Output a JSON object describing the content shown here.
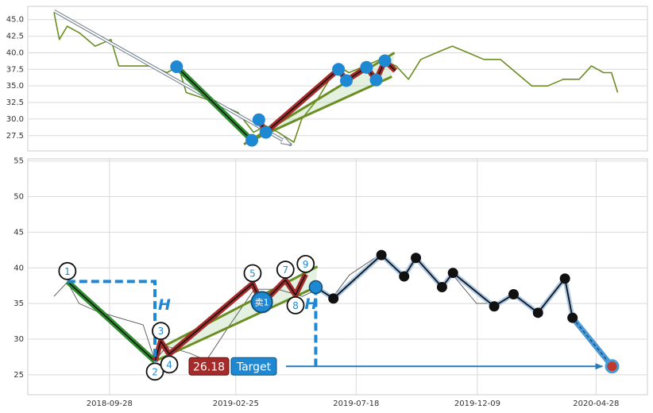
{
  "chart_data": [
    {
      "type": "line",
      "xlim": [
        "2018-06-20",
        "2020-05-28"
      ],
      "ylim": [
        25.2,
        47.0
      ],
      "yticks": [
        27.5,
        {
          "value": 30,
          "label": "30.0"
        },
        32.5,
        {
          "value": 35,
          "label": "35.0"
        },
        37.5,
        {
          "value": 40,
          "label": "40.0"
        },
        42.5,
        {
          "value": 45,
          "label": "45.0"
        }
      ],
      "grid": true,
      "x": [
        "2018-07-20",
        "2018-07-26",
        "2018-08-04",
        "2018-08-18",
        "2018-09-05",
        "2018-09-23",
        "2018-10-02",
        "2018-10-20",
        "2018-11-08",
        "2018-11-26",
        "2018-12-09",
        "2018-12-18",
        "2019-01-10",
        "2019-01-28",
        "2019-02-15",
        "2019-03-05",
        "2019-03-19",
        "2019-04-02",
        "2019-04-20",
        "2019-04-29",
        "2019-05-17",
        "2019-06-09",
        "2019-06-22",
        "2019-07-10",
        "2019-07-28",
        "2019-08-15",
        "2019-08-29",
        "2019-09-12",
        "2019-09-30",
        "2019-10-18",
        "2019-11-05",
        "2019-11-23",
        "2019-12-12",
        "2019-12-30",
        "2020-01-17",
        "2020-02-04",
        "2020-02-22",
        "2020-03-11",
        "2020-03-25",
        "2020-04-08",
        "2020-04-17",
        "2020-04-24"
      ],
      "series": [
        {
          "color": "#6b8e23",
          "values": [
            46,
            42,
            44,
            43,
            41,
            42,
            38,
            38,
            38,
            37,
            38,
            34,
            33,
            32,
            31,
            28,
            29,
            28,
            26.5,
            30,
            33,
            38,
            37,
            38,
            39,
            38,
            36,
            39,
            40,
            41,
            40,
            39,
            39,
            37,
            35,
            35,
            36,
            36,
            38,
            37,
            37,
            34
          ]
        }
      ],
      "arrow": {
        "x": [
          "2018-07-20",
          "2019-04-17"
        ],
        "values": [
          46.3,
          26.1
        ]
      },
      "trend": {
        "x": [
          "2018-12-07",
          "2019-03-03"
        ],
        "values": [
          37.9,
          26.8
        ]
      },
      "channel_upper": {
        "x": [
          "2019-02-22",
          "2019-08-13"
        ],
        "values": [
          26.2,
          40.0
        ]
      },
      "channel_lower": {
        "x": [
          "2019-03-03",
          "2019-08-10"
        ],
        "values": [
          26.8,
          36.4
        ]
      },
      "zigzag": {
        "x": [
          "2019-03-11",
          "2019-03-19",
          "2019-06-10",
          "2019-06-19",
          "2019-07-12",
          "2019-07-23",
          "2019-08-02",
          "2019-08-14"
        ],
        "values": [
          29.9,
          28.0,
          37.5,
          35.8,
          37.8,
          35.9,
          38.8,
          37.3
        ]
      },
      "markers": {
        "color": "#1e88d2",
        "x": [
          "2018-12-07",
          "2019-03-03",
          "2019-03-11",
          "2019-03-19",
          "2019-06-10",
          "2019-06-19",
          "2019-07-12",
          "2019-07-23",
          "2019-08-02"
        ],
        "values": [
          37.9,
          26.8,
          29.9,
          28.0,
          37.5,
          35.8,
          37.8,
          35.9,
          38.8
        ]
      }
    },
    {
      "type": "line",
      "xlim": [
        "2018-06-23",
        "2020-06-28"
      ],
      "ylim": [
        22.2,
        55.3
      ],
      "yticks": [
        25,
        30,
        35,
        40,
        45,
        50,
        55
      ],
      "xticks": [
        "2018-09-28",
        "2019-02-25",
        "2019-07-18",
        "2019-12-09",
        "2020-04-28"
      ],
      "grid": true,
      "x": [
        "2018-07-24",
        "2018-08-09",
        "2018-08-23",
        "2018-09-11",
        "2018-10-09",
        "2018-11-07",
        "2018-11-21",
        "2018-12-05",
        "2019-01-02",
        "2019-01-21",
        "2019-02-18",
        "2019-03-19",
        "2019-04-16",
        "2019-05-15",
        "2019-06-02",
        "2019-06-21",
        "2019-07-10",
        "2019-08-17",
        "2019-09-14",
        "2019-09-28",
        "2019-10-29",
        "2019-11-10",
        "2019-12-08",
        "2019-12-29",
        "2020-01-20",
        "2020-02-19",
        "2020-03-12",
        "2020-03-23",
        "2020-03-31"
      ],
      "series": [
        {
          "color": "#555555",
          "values": [
            36,
            38,
            35,
            34,
            33,
            32,
            27,
            29,
            28,
            27,
            32,
            37,
            37,
            36,
            37,
            36,
            39,
            42,
            39,
            41,
            37,
            39,
            35,
            35,
            36,
            34,
            37,
            38,
            33
          ]
        }
      ],
      "pattern": {
        "labels": [
          "1",
          "2",
          "3",
          "4",
          "5",
          null,
          "7",
          "8",
          "9"
        ],
        "x": [
          "2018-08-09",
          "2018-11-21",
          "2018-11-28",
          "2018-12-08",
          "2019-03-17",
          "2019-03-28",
          "2019-04-25",
          "2019-05-07",
          "2019-05-19"
        ],
        "values": [
          38.1,
          26.9,
          29.7,
          27.9,
          37.8,
          34.9,
          38.3,
          36.2,
          39.1
        ]
      },
      "channel_upper": {
        "x": [
          "2018-11-25",
          "2019-06-02"
        ],
        "values": [
          28.6,
          40.2
        ]
      },
      "channel_lower": {
        "x": [
          "2018-11-21",
          "2019-05-31"
        ],
        "values": [
          26.9,
          37.3
        ]
      },
      "zigzag": {
        "x": [
          "2019-05-31",
          "2019-06-21",
          "2019-08-17",
          "2019-09-13",
          "2019-09-27",
          "2019-10-28",
          "2019-11-10",
          "2019-12-29",
          "2020-01-21",
          "2020-02-19",
          "2020-03-22",
          "2020-03-31"
        ],
        "values": [
          37.3,
          35.7,
          41.8,
          38.8,
          41.4,
          37.3,
          39.3,
          34.6,
          36.3,
          33.7,
          38.5,
          33.0
        ]
      },
      "sell": {
        "label": "卖1",
        "x": "2019-03-28",
        "value": 35.2
      },
      "target": {
        "label": "Target",
        "x": "2020-05-17",
        "value": 26.18
      },
      "h_labels": [
        "H",
        "H"
      ]
    }
  ]
}
